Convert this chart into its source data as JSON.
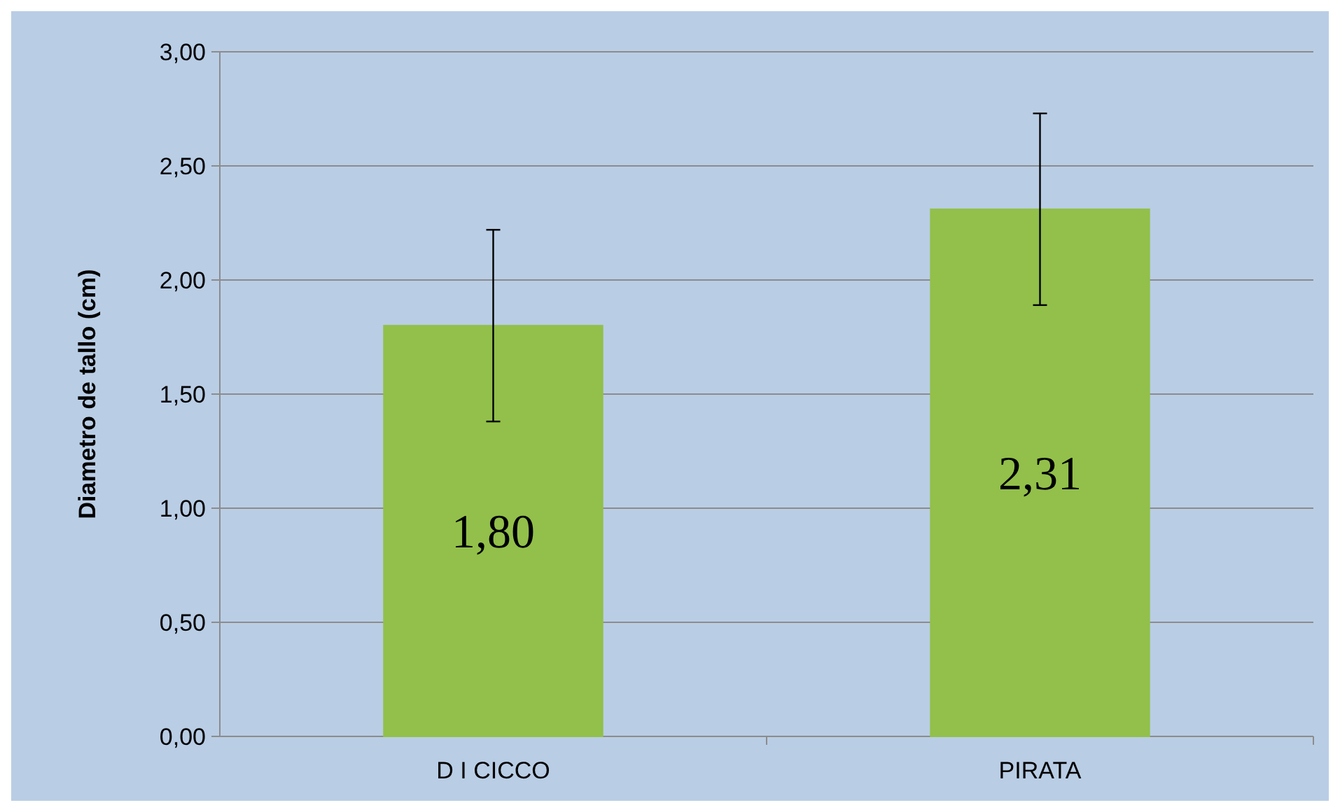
{
  "chart_data": {
    "type": "bar",
    "ylabel": "Diametro de tallo (cm)",
    "categories": [
      "D I CICCO",
      "PIRATA"
    ],
    "values": [
      1.8,
      2.31
    ],
    "errors": [
      0.42,
      0.42
    ],
    "color": "#92c04a",
    "value_labels": [
      "1,80",
      "2,31"
    ],
    "ylim": [
      0,
      3
    ],
    "yticks": [
      {
        "value": 0,
        "label": "0,00"
      },
      {
        "value": 0.5,
        "label": "0,50"
      },
      {
        "value": 1,
        "label": "1,00"
      },
      {
        "value": 1.5,
        "label": "1,50"
      },
      {
        "value": 2,
        "label": "2,00"
      },
      {
        "value": 2.5,
        "label": "2,50"
      },
      {
        "value": 3,
        "label": "3,00"
      }
    ],
    "grid": "y"
  }
}
